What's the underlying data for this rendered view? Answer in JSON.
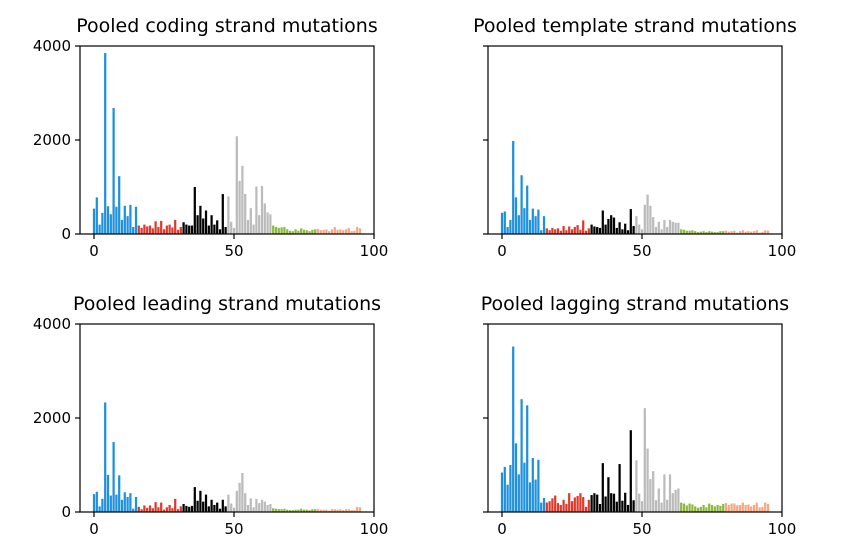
{
  "chart_data": [
    {
      "type": "bar",
      "title": "Pooled coding strand mutations",
      "xlabel": "",
      "ylabel": "",
      "xlim": [
        -5,
        100
      ],
      "ylim": [
        0,
        4000
      ],
      "xticks": [
        0,
        50,
        100
      ],
      "yticks": [
        0,
        2000,
        4000
      ],
      "show_yticklabels": true,
      "grid": false,
      "x": [
        0,
        1,
        2,
        3,
        4,
        5,
        6,
        7,
        8,
        9,
        10,
        11,
        12,
        13,
        14,
        15,
        16,
        17,
        18,
        19,
        20,
        21,
        22,
        23,
        24,
        25,
        26,
        27,
        28,
        29,
        30,
        31,
        32,
        33,
        34,
        35,
        36,
        37,
        38,
        39,
        40,
        41,
        42,
        43,
        44,
        45,
        46,
        47,
        48,
        49,
        50,
        51,
        52,
        53,
        54,
        55,
        56,
        57,
        58,
        59,
        60,
        61,
        62,
        63,
        64,
        65,
        66,
        67,
        68,
        69,
        70,
        71,
        72,
        73,
        74,
        75,
        76,
        77,
        78,
        79,
        80,
        81,
        82,
        83,
        84,
        85,
        86,
        87,
        88,
        89,
        90,
        91,
        92,
        93,
        94,
        95
      ],
      "values": [
        540,
        780,
        200,
        450,
        3850,
        590,
        420,
        2680,
        580,
        1230,
        300,
        600,
        380,
        620,
        150,
        580,
        180,
        130,
        200,
        160,
        180,
        120,
        270,
        150,
        280,
        100,
        180,
        200,
        140,
        300,
        90,
        150,
        250,
        200,
        180,
        180,
        1000,
        400,
        600,
        330,
        500,
        180,
        400,
        200,
        290,
        100,
        850,
        150,
        800,
        260,
        130,
        2080,
        1130,
        1450,
        850,
        300,
        550,
        200,
        1010,
        400,
        1020,
        650,
        460,
        420,
        180,
        150,
        130,
        140,
        150,
        100,
        70,
        60,
        100,
        70,
        120,
        90,
        80,
        60,
        90,
        100,
        110,
        80,
        90,
        100,
        60,
        100,
        150,
        90,
        100,
        80,
        100,
        130,
        60,
        70,
        150,
        120
      ],
      "colors": [
        "#1e90dc",
        "#dd3a2c",
        "#000000",
        "#bbbbbb",
        "#8dba3e",
        "#f7a883"
      ]
    },
    {
      "type": "bar",
      "title": "Pooled template strand mutations",
      "xlabel": "",
      "ylabel": "",
      "xlim": [
        -5,
        100
      ],
      "ylim": [
        0,
        4000
      ],
      "xticks": [
        0,
        50,
        100
      ],
      "yticks": [
        0,
        2000,
        4000
      ],
      "show_yticklabels": false,
      "grid": false,
      "x": [
        0,
        1,
        2,
        3,
        4,
        5,
        6,
        7,
        8,
        9,
        10,
        11,
        12,
        13,
        14,
        15,
        16,
        17,
        18,
        19,
        20,
        21,
        22,
        23,
        24,
        25,
        26,
        27,
        28,
        29,
        30,
        31,
        32,
        33,
        34,
        35,
        36,
        37,
        38,
        39,
        40,
        41,
        42,
        43,
        44,
        45,
        46,
        47,
        48,
        49,
        50,
        51,
        52,
        53,
        54,
        55,
        56,
        57,
        58,
        59,
        60,
        61,
        62,
        63,
        64,
        65,
        66,
        67,
        68,
        69,
        70,
        71,
        72,
        73,
        74,
        75,
        76,
        77,
        78,
        79,
        80,
        81,
        82,
        83,
        84,
        85,
        86,
        87,
        88,
        89,
        90,
        91,
        92,
        93,
        94,
        95
      ],
      "values": [
        450,
        480,
        150,
        300,
        1980,
        780,
        400,
        1250,
        550,
        1030,
        300,
        540,
        380,
        520,
        80,
        380,
        120,
        80,
        130,
        100,
        120,
        70,
        170,
        80,
        160,
        100,
        150,
        190,
        90,
        290,
        70,
        120,
        200,
        160,
        150,
        130,
        500,
        200,
        320,
        400,
        350,
        130,
        250,
        100,
        220,
        80,
        530,
        170,
        380,
        200,
        100,
        620,
        840,
        600,
        360,
        150,
        260,
        100,
        300,
        150,
        300,
        260,
        240,
        240,
        100,
        90,
        70,
        70,
        80,
        60,
        40,
        50,
        60,
        40,
        60,
        50,
        40,
        40,
        60,
        60,
        70,
        50,
        60,
        70,
        30,
        60,
        80,
        50,
        60,
        50,
        60,
        80,
        30,
        40,
        80,
        70
      ],
      "colors": [
        "#1e90dc",
        "#dd3a2c",
        "#000000",
        "#bbbbbb",
        "#8dba3e",
        "#f7a883"
      ]
    },
    {
      "type": "bar",
      "title": "Pooled leading strand mutations",
      "xlabel": "",
      "ylabel": "",
      "xlim": [
        -5,
        100
      ],
      "ylim": [
        0,
        4000
      ],
      "xticks": [
        0,
        50,
        100
      ],
      "yticks": [
        0,
        2000,
        4000
      ],
      "show_yticklabels": true,
      "grid": false,
      "x": [
        0,
        1,
        2,
        3,
        4,
        5,
        6,
        7,
        8,
        9,
        10,
        11,
        12,
        13,
        14,
        15,
        16,
        17,
        18,
        19,
        20,
        21,
        22,
        23,
        24,
        25,
        26,
        27,
        28,
        29,
        30,
        31,
        32,
        33,
        34,
        35,
        36,
        37,
        38,
        39,
        40,
        41,
        42,
        43,
        44,
        45,
        46,
        47,
        48,
        49,
        50,
        51,
        52,
        53,
        54,
        55,
        56,
        57,
        58,
        59,
        60,
        61,
        62,
        63,
        64,
        65,
        66,
        67,
        68,
        69,
        70,
        71,
        72,
        73,
        74,
        75,
        76,
        77,
        78,
        79,
        80,
        81,
        82,
        83,
        84,
        85,
        86,
        87,
        88,
        89,
        90,
        91,
        92,
        93,
        94,
        95
      ],
      "values": [
        380,
        430,
        120,
        280,
        2330,
        790,
        350,
        1490,
        370,
        780,
        260,
        420,
        320,
        400,
        70,
        320,
        110,
        60,
        140,
        90,
        140,
        80,
        210,
        100,
        200,
        50,
        100,
        150,
        80,
        280,
        60,
        120,
        170,
        130,
        110,
        130,
        530,
        240,
        450,
        220,
        370,
        120,
        260,
        150,
        200,
        70,
        260,
        120,
        370,
        180,
        90,
        450,
        620,
        830,
        400,
        150,
        290,
        100,
        280,
        190,
        260,
        220,
        150,
        170,
        80,
        70,
        60,
        60,
        70,
        50,
        40,
        40,
        50,
        50,
        70,
        50,
        50,
        40,
        60,
        60,
        60,
        50,
        50,
        50,
        30,
        60,
        60,
        50,
        60,
        40,
        60,
        60,
        40,
        40,
        110,
        100
      ],
      "colors": [
        "#1e90dc",
        "#dd3a2c",
        "#000000",
        "#bbbbbb",
        "#8dba3e",
        "#f7a883"
      ]
    },
    {
      "type": "bar",
      "title": "Pooled lagging strand mutations",
      "xlabel": "",
      "ylabel": "",
      "xlim": [
        -5,
        100
      ],
      "ylim": [
        0,
        4000
      ],
      "xticks": [
        0,
        50,
        100
      ],
      "yticks": [
        0,
        2000,
        4000
      ],
      "show_yticklabels": false,
      "grid": false,
      "x": [
        0,
        1,
        2,
        3,
        4,
        5,
        6,
        7,
        8,
        9,
        10,
        11,
        12,
        13,
        14,
        15,
        16,
        17,
        18,
        19,
        20,
        21,
        22,
        23,
        24,
        25,
        26,
        27,
        28,
        29,
        30,
        31,
        32,
        33,
        34,
        35,
        36,
        37,
        38,
        39,
        40,
        41,
        42,
        43,
        44,
        45,
        46,
        47,
        48,
        49,
        50,
        51,
        52,
        53,
        54,
        55,
        56,
        57,
        58,
        59,
        60,
        61,
        62,
        63,
        64,
        65,
        66,
        67,
        68,
        69,
        70,
        71,
        72,
        73,
        74,
        75,
        76,
        77,
        78,
        79,
        80,
        81,
        82,
        83,
        84,
        85,
        86,
        87,
        88,
        89,
        90,
        91,
        92,
        93,
        94,
        95
      ],
      "values": [
        840,
        960,
        580,
        1000,
        3520,
        1460,
        800,
        2400,
        1050,
        2270,
        630,
        1150,
        690,
        1110,
        200,
        300,
        200,
        230,
        290,
        350,
        190,
        150,
        260,
        170,
        400,
        230,
        310,
        340,
        400,
        320,
        110,
        260,
        360,
        400,
        370,
        170,
        1040,
        330,
        740,
        400,
        390,
        220,
        1020,
        240,
        410,
        150,
        1740,
        250,
        1100,
        390,
        230,
        2210,
        1350,
        700,
        870,
        250,
        500,
        200,
        800,
        260,
        800,
        400,
        470,
        500,
        200,
        180,
        140,
        180,
        160,
        120,
        90,
        110,
        150,
        100,
        180,
        150,
        120,
        150,
        130,
        170,
        190,
        150,
        180,
        180,
        140,
        150,
        200,
        150,
        160,
        120,
        150,
        200,
        100,
        110,
        200,
        170
      ],
      "colors": [
        "#1e90dc",
        "#dd3a2c",
        "#000000",
        "#bbbbbb",
        "#8dba3e",
        "#f7a883"
      ]
    }
  ]
}
